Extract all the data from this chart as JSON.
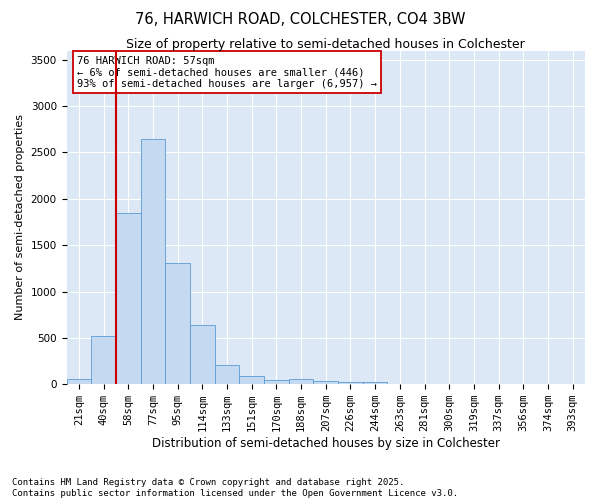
{
  "title": "76, HARWICH ROAD, COLCHESTER, CO4 3BW",
  "subtitle": "Size of property relative to semi-detached houses in Colchester",
  "xlabel": "Distribution of semi-detached houses by size in Colchester",
  "ylabel": "Number of semi-detached properties",
  "footnote1": "Contains HM Land Registry data © Crown copyright and database right 2025.",
  "footnote2": "Contains public sector information licensed under the Open Government Licence v3.0.",
  "bar_labels": [
    "21sqm",
    "40sqm",
    "58sqm",
    "77sqm",
    "95sqm",
    "114sqm",
    "133sqm",
    "151sqm",
    "170sqm",
    "188sqm",
    "207sqm",
    "226sqm",
    "244sqm",
    "263sqm",
    "281sqm",
    "300sqm",
    "319sqm",
    "337sqm",
    "356sqm",
    "374sqm",
    "393sqm"
  ],
  "bar_values": [
    55,
    525,
    1850,
    2650,
    1310,
    640,
    210,
    90,
    50,
    55,
    35,
    20,
    20,
    5,
    2,
    2,
    1,
    0,
    0,
    0,
    0
  ],
  "bar_color": "#c5d9f0",
  "bar_edge_color": "#5b9bd5",
  "property_line_index": 2,
  "property_line_color": "#cc0000",
  "annotation_line1": "76 HARWICH ROAD: 57sqm",
  "annotation_line2": "← 6% of semi-detached houses are smaller (446)",
  "annotation_line3": "93% of semi-detached houses are larger (6,957) →",
  "annotation_box_color": "white",
  "annotation_box_edge_color": "#cc0000",
  "ylim": [
    0,
    3600
  ],
  "yticks": [
    0,
    500,
    1000,
    1500,
    2000,
    2500,
    3000,
    3500
  ],
  "background_color": "#dce8f5",
  "grid_color": "white",
  "title_fontsize": 10.5,
  "subtitle_fontsize": 9.0,
  "ylabel_fontsize": 8.0,
  "xlabel_fontsize": 8.5,
  "tick_fontsize": 7.5,
  "footnote_fontsize": 6.5
}
